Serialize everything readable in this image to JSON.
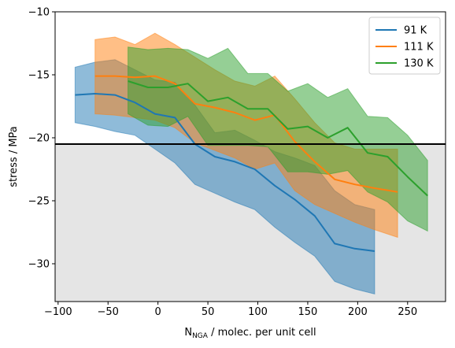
{
  "chart_data": {
    "type": "line",
    "title": "",
    "xlabel": {
      "main": "N",
      "sub": "NGA",
      "rest": " / molec. per unit cell"
    },
    "ylabel": "stress / MPa",
    "xlim": [
      -103,
      288
    ],
    "ylim": [
      -33,
      -10
    ],
    "xticks": [
      -100,
      -50,
      0,
      50,
      100,
      150,
      200,
      250
    ],
    "yticks": [
      -30,
      -25,
      -20,
      -15,
      -10
    ],
    "ytick_labels": [
      "−30",
      "−25",
      "−20",
      "−15",
      "−10"
    ],
    "xtick_labels": [
      "−100",
      "−50",
      "0",
      "50",
      "100",
      "150",
      "200",
      "250"
    ],
    "threshold": -20.5,
    "shaded_region": {
      "from": -33,
      "to": -20.5,
      "color": "#e5e5e5"
    },
    "legend_position": "top-right",
    "series": [
      {
        "name": "91 K",
        "color": "#1f77b4",
        "x": [
          -83,
          -63,
          -43,
          -23,
          -3,
          17,
          37,
          57,
          77,
          97,
          117,
          137,
          157,
          177,
          197,
          217
        ],
        "y": [
          -16.6,
          -16.5,
          -16.6,
          -17.2,
          -18.1,
          -18.4,
          -20.5,
          -21.5,
          -21.9,
          -22.5,
          -23.8,
          -24.9,
          -26.2,
          -28.4,
          -28.8,
          -29.0
        ],
        "upper": [
          -14.4,
          -14.0,
          -13.8,
          -14.6,
          -15.4,
          -15.6,
          -17.4,
          -19.6,
          -19.4,
          -20.2,
          -21.1,
          -21.6,
          -22.2,
          -24.2,
          -25.3,
          -25.7
        ],
        "lower": [
          -18.8,
          -19.1,
          -19.5,
          -19.8,
          -20.9,
          -22.0,
          -23.7,
          -24.4,
          -25.1,
          -25.7,
          -27.1,
          -28.3,
          -29.4,
          -31.4,
          -32.0,
          -32.4
        ]
      },
      {
        "name": "111 K",
        "color": "#ff7f0e",
        "x": [
          -63,
          -43,
          -23,
          -3,
          17,
          37,
          57,
          77,
          97,
          117,
          137,
          157,
          177,
          197,
          217,
          240
        ],
        "y": [
          -15.1,
          -15.1,
          -15.2,
          -15.1,
          -15.7,
          -17.3,
          -17.6,
          -18.0,
          -18.6,
          -18.2,
          -20.3,
          -21.9,
          -23.3,
          -23.7,
          -24.0,
          -24.3
        ],
        "upper": [
          -12.2,
          -12.0,
          -12.6,
          -11.7,
          -12.6,
          -13.6,
          -14.6,
          -15.5,
          -15.9,
          -15.1,
          -16.9,
          -18.8,
          -20.4,
          -20.9,
          -20.9,
          -20.9
        ],
        "lower": [
          -18.1,
          -18.2,
          -18.4,
          -18.6,
          -19.2,
          -20.4,
          -21.0,
          -21.6,
          -22.5,
          -22.0,
          -24.2,
          -25.3,
          -26.0,
          -26.7,
          -27.3,
          -27.9
        ]
      },
      {
        "name": "130 K",
        "color": "#2ca02c",
        "x": [
          -30,
          -10,
          10,
          30,
          50,
          70,
          90,
          110,
          130,
          150,
          170,
          190,
          210,
          230,
          250,
          270
        ],
        "y": [
          -15.5,
          -16.0,
          -16.0,
          -15.7,
          -17.1,
          -16.8,
          -17.7,
          -17.7,
          -19.3,
          -19.1,
          -20.0,
          -19.2,
          -21.2,
          -21.5,
          -23.1,
          -24.6
        ],
        "upper": [
          -12.8,
          -13.0,
          -12.9,
          -13.0,
          -13.7,
          -12.9,
          -14.9,
          -14.9,
          -16.3,
          -15.7,
          -16.8,
          -16.1,
          -18.3,
          -18.4,
          -19.8,
          -21.8
        ],
        "lower": [
          -18.1,
          -19.0,
          -19.1,
          -18.3,
          -20.6,
          -20.6,
          -20.6,
          -20.7,
          -22.7,
          -22.7,
          -22.9,
          -22.6,
          -24.3,
          -25.1,
          -26.6,
          -27.4
        ]
      }
    ]
  }
}
